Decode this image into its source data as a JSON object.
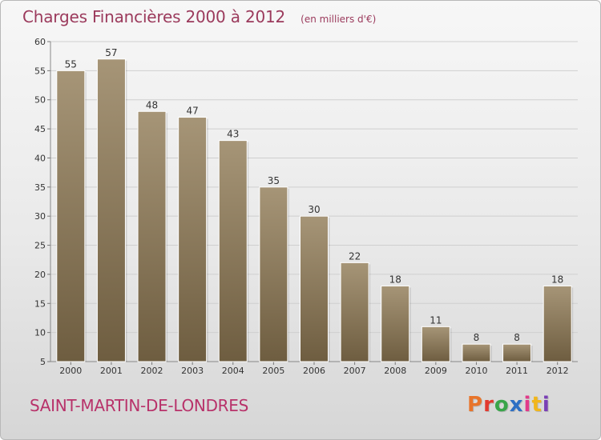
{
  "header": {
    "title": "Charges Financières 2000 à 2012",
    "subtitle": "(en milliers d'€)"
  },
  "footer": {
    "town": "SAINT-MARTIN-DE-LONDRES",
    "logo": "Proxiti",
    "logo_colors": [
      "#e8742a",
      "#e23a2f",
      "#3aa54a",
      "#2d6fc4",
      "#e23a8a",
      "#f1b61b",
      "#7a3fb5"
    ]
  },
  "colors": {
    "bar_top": "#a69577",
    "bar_bottom": "#6e5d40",
    "text": "#9b3a5c",
    "town": "#b8326a"
  },
  "chart_data": {
    "type": "bar",
    "categories": [
      "2000",
      "2001",
      "2002",
      "2003",
      "2004",
      "2005",
      "2006",
      "2007",
      "2008",
      "2009",
      "2010",
      "2011",
      "2012"
    ],
    "values": [
      55,
      57,
      48,
      47,
      43,
      35,
      30,
      22,
      18,
      11,
      8,
      8,
      18
    ],
    "ylim": [
      5,
      60
    ],
    "yticks": [
      5,
      10,
      15,
      20,
      25,
      30,
      35,
      40,
      45,
      50,
      55,
      60
    ],
    "grid": true
  }
}
